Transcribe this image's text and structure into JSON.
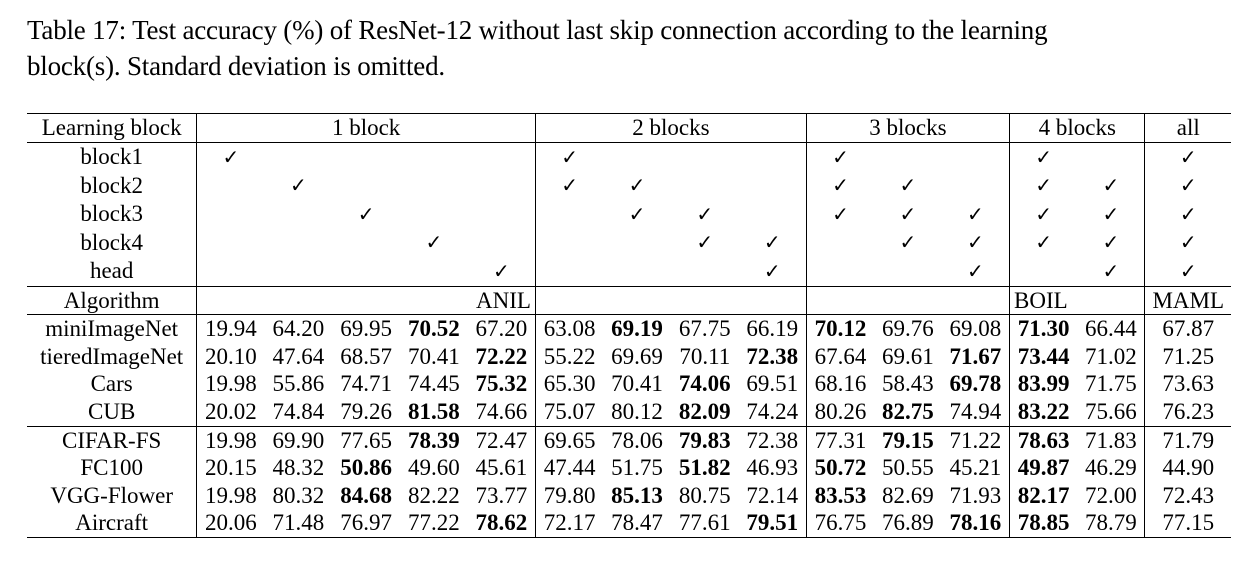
{
  "caption": {
    "line1": "Table 17: Test accuracy (%) of ResNet-12 without last skip connection according to the learning",
    "line2": "block(s). Standard deviation is omitted."
  },
  "header": {
    "corner": "Learning block",
    "groups": [
      "1 block",
      "2 blocks",
      "3 blocks",
      "4 blocks",
      "all"
    ]
  },
  "blocks": {
    "labels": [
      "block1",
      "block2",
      "block3",
      "block4",
      "head"
    ],
    "check_mark": "✓"
  },
  "algorithm": {
    "label": "Algorithm",
    "anil": "ANIL",
    "boil": "BOIL",
    "maml": "MAML"
  },
  "rows": [
    {
      "name": "miniImageNet",
      "values": [
        "19.94",
        "64.20",
        "69.95",
        "70.52",
        "67.20",
        "63.08",
        "69.19",
        "67.75",
        "66.19",
        "70.12",
        "69.76",
        "69.08",
        "71.30",
        "66.44",
        "67.87"
      ]
    },
    {
      "name": "tieredImageNet",
      "values": [
        "20.10",
        "47.64",
        "68.57",
        "70.41",
        "72.22",
        "55.22",
        "69.69",
        "70.11",
        "72.38",
        "67.64",
        "69.61",
        "71.67",
        "73.44",
        "71.02",
        "71.25"
      ]
    },
    {
      "name": "Cars",
      "values": [
        "19.98",
        "55.86",
        "74.71",
        "74.45",
        "75.32",
        "65.30",
        "70.41",
        "74.06",
        "69.51",
        "68.16",
        "58.43",
        "69.78",
        "83.99",
        "71.75",
        "73.63"
      ]
    },
    {
      "name": "CUB",
      "values": [
        "20.02",
        "74.84",
        "79.26",
        "81.58",
        "74.66",
        "75.07",
        "80.12",
        "82.09",
        "74.24",
        "80.26",
        "82.75",
        "74.94",
        "83.22",
        "75.66",
        "76.23"
      ]
    },
    {
      "name": "CIFAR-FS",
      "values": [
        "19.98",
        "69.90",
        "77.65",
        "78.39",
        "72.47",
        "69.65",
        "78.06",
        "79.83",
        "72.38",
        "77.31",
        "79.15",
        "71.22",
        "78.63",
        "71.83",
        "71.79"
      ]
    },
    {
      "name": "FC100",
      "values": [
        "20.15",
        "48.32",
        "50.86",
        "49.60",
        "45.61",
        "47.44",
        "51.75",
        "51.82",
        "46.93",
        "50.72",
        "50.55",
        "45.21",
        "49.87",
        "46.29",
        "44.90"
      ]
    },
    {
      "name": "VGG-Flower",
      "values": [
        "19.98",
        "80.32",
        "84.68",
        "82.22",
        "73.77",
        "79.80",
        "85.13",
        "80.75",
        "72.14",
        "83.53",
        "82.69",
        "71.93",
        "82.17",
        "72.00",
        "72.43"
      ]
    },
    {
      "name": "Aircraft",
      "values": [
        "20.06",
        "71.48",
        "76.97",
        "77.22",
        "78.62",
        "72.17",
        "78.47",
        "77.61",
        "79.51",
        "76.75",
        "76.89",
        "78.16",
        "78.85",
        "78.79",
        "77.15"
      ]
    }
  ]
}
